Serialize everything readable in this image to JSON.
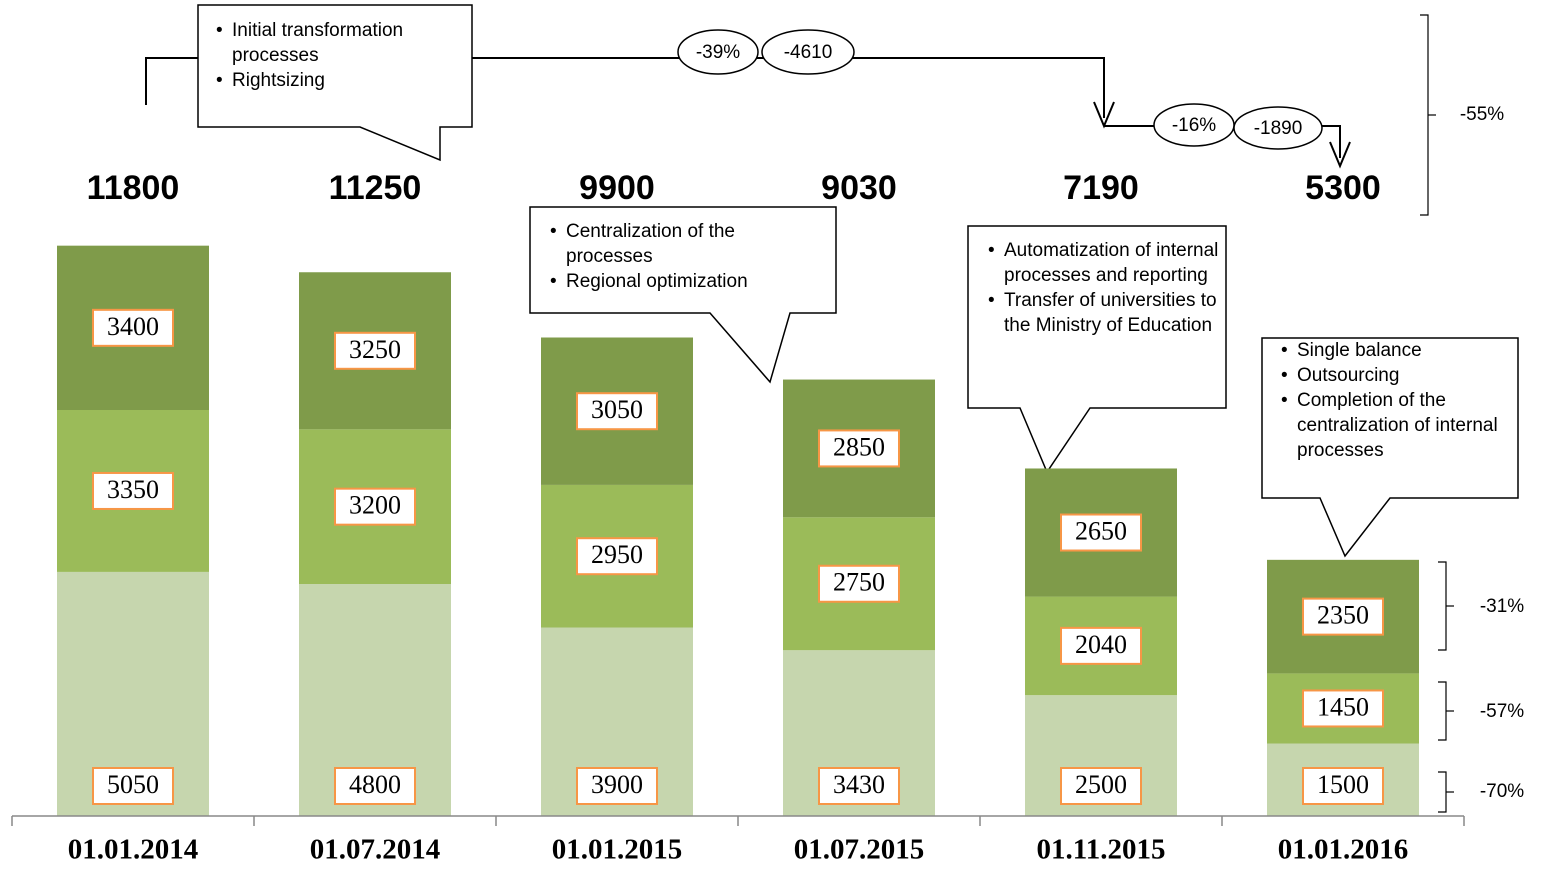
{
  "chart_data": {
    "type": "stacked_bar",
    "categories": [
      "01.01.2014",
      "01.07.2014",
      "01.01.2015",
      "01.07.2015",
      "01.11.2015",
      "01.01.2016"
    ],
    "series": [
      {
        "color": "#c6d6ae",
        "values": [
          5050,
          4800,
          3900,
          3430,
          2500,
          1500
        ]
      },
      {
        "color": "#9bbb59",
        "values": [
          3350,
          3200,
          2950,
          2750,
          2040,
          1450
        ]
      },
      {
        "color": "#7f9b4a",
        "values": [
          3400,
          3250,
          3050,
          2850,
          2650,
          2350
        ]
      }
    ],
    "totals": [
      11800,
      11250,
      9900,
      9030,
      7190,
      5300
    ],
    "ylim": [
      0,
      12000
    ],
    "change_labels": [
      "-39%",
      "-4610",
      "-16%",
      "-1890"
    ],
    "brace_labels": [
      "-55%",
      "-31%",
      "-57%",
      "-70%"
    ],
    "callouts": [
      {
        "items": [
          "Initial transformation processes",
          "Rightsizing"
        ]
      },
      {
        "items": [
          "Centralization of the processes",
          "Regional optimization"
        ]
      },
      {
        "items": [
          "Automatization of internal processes and reporting",
          "Transfer of universities to the Ministry of Education"
        ]
      },
      {
        "items": [
          "Single balance",
          "Outsourcing",
          "Completion of the centralization of internal processes"
        ]
      }
    ]
  }
}
